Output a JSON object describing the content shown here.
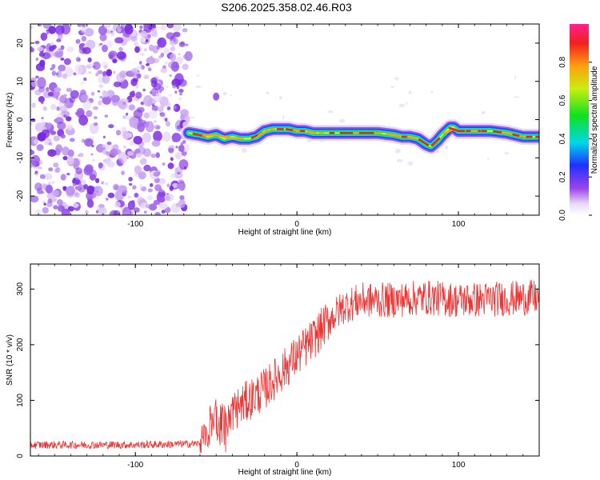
{
  "figure_title": "S206.2025.358.02.46.R03",
  "chart_data": [
    {
      "type": "heatmap",
      "title": "S206.2025.358.02.46.R03",
      "xlabel": "Height of straight line (km)",
      "ylabel": "Frequency (Hz)",
      "xlim": [
        -165,
        150
      ],
      "ylim": [
        -25,
        25
      ],
      "x_ticks": [
        -100,
        0,
        100
      ],
      "y_ticks": [
        -20,
        -10,
        0,
        10,
        20
      ],
      "x_tick_labels": [
        "-100",
        "0",
        "100"
      ],
      "y_tick_labels": [
        "-20",
        "-10",
        "0",
        "10",
        "20"
      ],
      "noise_region_x": [
        -165,
        -67
      ],
      "signal_trace": {
        "x": [
          -67,
          -60,
          -55,
          -50,
          -45,
          -40,
          -35,
          -30,
          -25,
          -20,
          -15,
          -10,
          -5,
          0,
          5,
          10,
          20,
          30,
          40,
          50,
          60,
          65,
          70,
          75,
          80,
          83,
          87,
          90,
          95,
          97,
          100,
          110,
          120,
          130,
          140,
          150
        ],
        "y": [
          -3.5,
          -4,
          -4.5,
          -4,
          -5,
          -4.5,
          -5,
          -5,
          -4.5,
          -3,
          -2.5,
          -2.5,
          -2.5,
          -3,
          -3,
          -3.5,
          -3.5,
          -3.5,
          -3.5,
          -3.5,
          -4,
          -4.5,
          -4.5,
          -5,
          -6.5,
          -7,
          -5.5,
          -4,
          -2,
          -2,
          -3,
          -3,
          -3,
          -3.5,
          -4.5,
          -4.5
        ]
      },
      "colorbar": {
        "label": "Normalized spectral amplitude",
        "range": [
          0,
          1
        ],
        "ticks": [
          0.0,
          0.2,
          0.4,
          0.6,
          0.8
        ],
        "tick_labels": [
          "0.0",
          "0.2",
          "0.4",
          "0.6",
          "0.8"
        ]
      }
    },
    {
      "type": "line",
      "title": "",
      "xlabel": "Height of straight line (km)",
      "ylabel": "SNR (10 * v/v)",
      "xlim": [
        -165,
        150
      ],
      "ylim": [
        0,
        345
      ],
      "x_ticks": [
        -100,
        0,
        100
      ],
      "y_ticks": [
        0,
        100,
        200,
        300
      ],
      "x_tick_labels": [
        "-100",
        "0",
        "100"
      ],
      "y_tick_labels": [
        "0",
        "100",
        "200",
        "300"
      ],
      "line_color": "#ee3333",
      "envelope": {
        "x": [
          -165,
          -100,
          -60,
          -55,
          -50,
          -45,
          -40,
          -30,
          -20,
          -10,
          0,
          10,
          20,
          30,
          40,
          60,
          80,
          100,
          120,
          150
        ],
        "y": [
          20,
          20,
          22,
          50,
          75,
          55,
          80,
          100,
          120,
          150,
          180,
          210,
          245,
          270,
          280,
          280,
          285,
          280,
          282,
          285
        ]
      }
    }
  ]
}
